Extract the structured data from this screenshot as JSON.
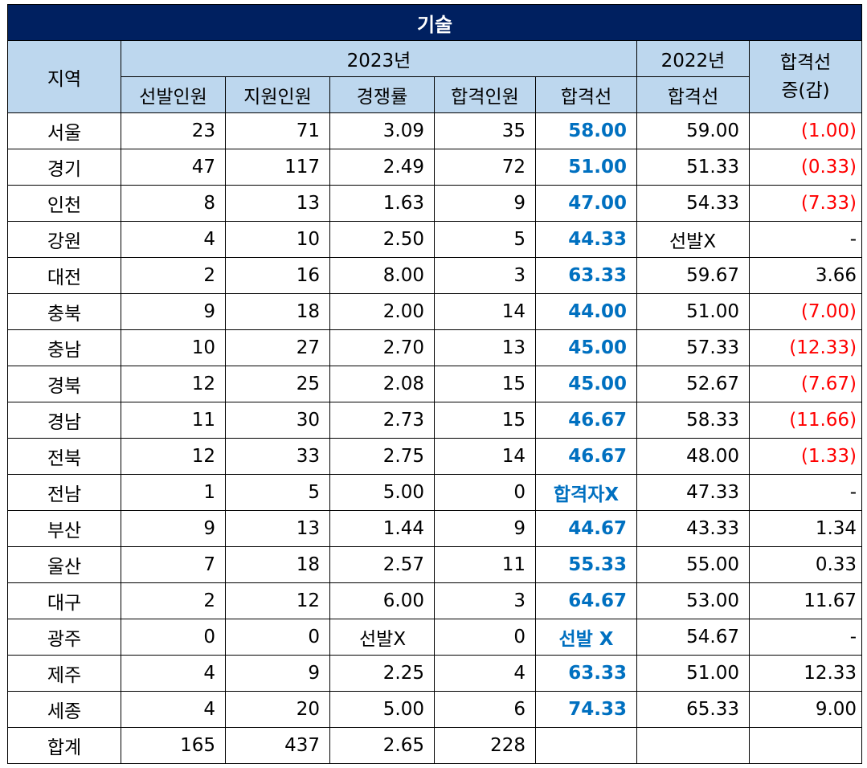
{
  "title": "기술",
  "headers": {
    "region": "지역",
    "year_current": "2023년",
    "year_prev": "2022년",
    "change_line1": "합격선",
    "change_line2": "증(감)",
    "sub": [
      "선발인원",
      "지원인원",
      "경쟁률",
      "합격인원",
      "합격선"
    ],
    "prev_sub": "합격선"
  },
  "rows": [
    {
      "region": "서울",
      "selected": "23",
      "applied": "71",
      "ratio": "3.09",
      "passed": "35",
      "cutoff": "58.00",
      "prev_cutoff": "59.00",
      "change": "(1.00)"
    },
    {
      "region": "경기",
      "selected": "47",
      "applied": "117",
      "ratio": "2.49",
      "passed": "72",
      "cutoff": "51.00",
      "prev_cutoff": "51.33",
      "change": "(0.33)"
    },
    {
      "region": "인천",
      "selected": "8",
      "applied": "13",
      "ratio": "1.63",
      "passed": "9",
      "cutoff": "47.00",
      "prev_cutoff": "54.33",
      "change": "(7.33)"
    },
    {
      "region": "강원",
      "selected": "4",
      "applied": "10",
      "ratio": "2.50",
      "passed": "5",
      "cutoff": "44.33",
      "prev_cutoff": "선발X",
      "change": "-"
    },
    {
      "region": "대전",
      "selected": "2",
      "applied": "16",
      "ratio": "8.00",
      "passed": "3",
      "cutoff": "63.33",
      "prev_cutoff": "59.67",
      "change": "3.66"
    },
    {
      "region": "충북",
      "selected": "9",
      "applied": "18",
      "ratio": "2.00",
      "passed": "14",
      "cutoff": "44.00",
      "prev_cutoff": "51.00",
      "change": "(7.00)"
    },
    {
      "region": "충남",
      "selected": "10",
      "applied": "27",
      "ratio": "2.70",
      "passed": "13",
      "cutoff": "45.00",
      "prev_cutoff": "57.33",
      "change": "(12.33)"
    },
    {
      "region": "경북",
      "selected": "12",
      "applied": "25",
      "ratio": "2.08",
      "passed": "15",
      "cutoff": "45.00",
      "prev_cutoff": "52.67",
      "change": "(7.67)"
    },
    {
      "region": "경남",
      "selected": "11",
      "applied": "30",
      "ratio": "2.73",
      "passed": "15",
      "cutoff": "46.67",
      "prev_cutoff": "58.33",
      "change": "(11.66)"
    },
    {
      "region": "전북",
      "selected": "12",
      "applied": "33",
      "ratio": "2.75",
      "passed": "14",
      "cutoff": "46.67",
      "prev_cutoff": "48.00",
      "change": "(1.33)"
    },
    {
      "region": "전남",
      "selected": "1",
      "applied": "5",
      "ratio": "5.00",
      "passed": "0",
      "cutoff": "합격자X",
      "prev_cutoff": "47.33",
      "change": "-"
    },
    {
      "region": "부산",
      "selected": "9",
      "applied": "13",
      "ratio": "1.44",
      "passed": "9",
      "cutoff": "44.67",
      "prev_cutoff": "43.33",
      "change": "1.34"
    },
    {
      "region": "울산",
      "selected": "7",
      "applied": "18",
      "ratio": "2.57",
      "passed": "11",
      "cutoff": "55.33",
      "prev_cutoff": "55.00",
      "change": "0.33"
    },
    {
      "region": "대구",
      "selected": "2",
      "applied": "12",
      "ratio": "6.00",
      "passed": "3",
      "cutoff": "64.67",
      "prev_cutoff": "53.00",
      "change": "11.67"
    },
    {
      "region": "광주",
      "selected": "0",
      "applied": "0",
      "ratio": "선발X",
      "passed": "0",
      "cutoff": "선발 X",
      "prev_cutoff": "54.67",
      "change": "-"
    },
    {
      "region": "제주",
      "selected": "4",
      "applied": "9",
      "ratio": "2.25",
      "passed": "4",
      "cutoff": "63.33",
      "prev_cutoff": "51.00",
      "change": "12.33"
    },
    {
      "region": "세종",
      "selected": "4",
      "applied": "20",
      "ratio": "5.00",
      "passed": "6",
      "cutoff": "74.33",
      "prev_cutoff": "65.33",
      "change": "9.00"
    },
    {
      "region": "합계",
      "selected": "165",
      "applied": "437",
      "ratio": "2.65",
      "passed": "228",
      "cutoff": "",
      "prev_cutoff": "",
      "change": ""
    }
  ],
  "colors": {
    "title_bg": "#002060",
    "header_bg": "#BDD7EE",
    "cutoff_text": "#0070C0",
    "negative_text": "#FF0000"
  }
}
